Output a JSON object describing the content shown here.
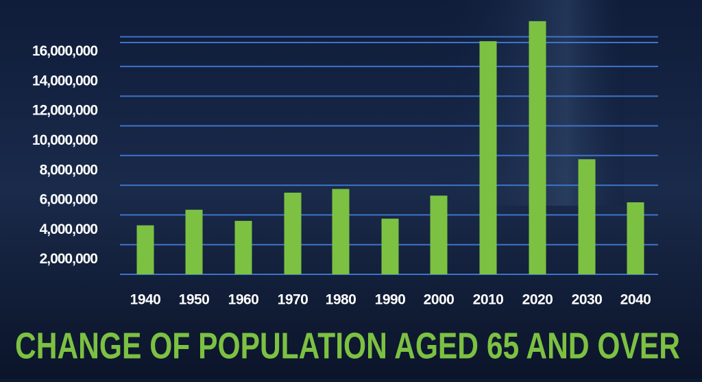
{
  "chart_data": {
    "type": "bar",
    "title": "CHANGE OF POPULATION AGED 65 AND OVER",
    "categories": [
      "1940",
      "1950",
      "1960",
      "1970",
      "1980",
      "1990",
      "2000",
      "2010",
      "2020",
      "2030",
      "2040"
    ],
    "values": [
      3300000,
      4350000,
      3600000,
      5500000,
      5750000,
      3750000,
      5300000,
      15700000,
      17050000,
      7750000,
      4850000
    ],
    "color": "#7cc142",
    "ylim": [
      0,
      18475000
    ],
    "yticks": [
      {
        "value": 2000000,
        "label": "2,000,000"
      },
      {
        "value": 4000000,
        "label": "4,000,000"
      },
      {
        "value": 6000000,
        "label": "6,000,000"
      },
      {
        "value": 8000000,
        "label": "8,000,000"
      },
      {
        "value": 10000000,
        "label": "10,000,000"
      },
      {
        "value": 12000000,
        "label": "12,000,000"
      },
      {
        "value": 14000000,
        "label": "14,000,000"
      },
      {
        "value": 16000000,
        "label": "16,000,000"
      }
    ],
    "grid": true
  }
}
